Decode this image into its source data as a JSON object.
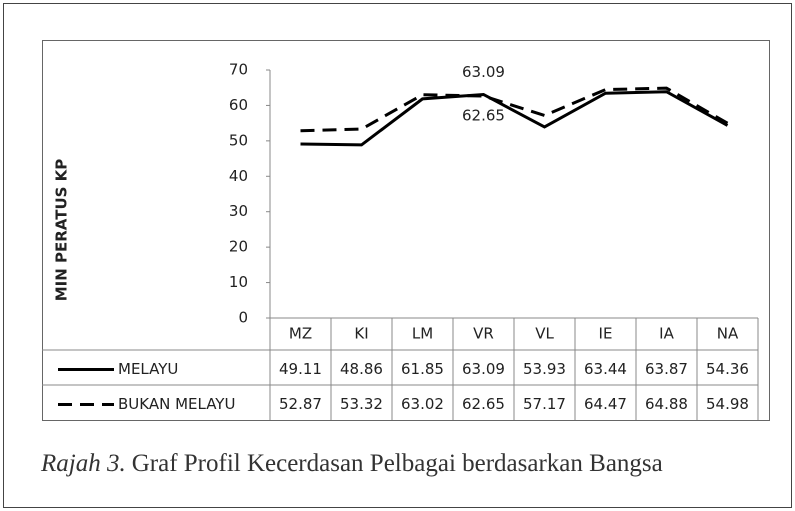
{
  "chart_data": {
    "type": "line",
    "y_axis_label": "MIN PERATUS KP",
    "categories": [
      "MZ",
      "KI",
      "LM",
      "VR",
      "VL",
      "IE",
      "IA",
      "NA"
    ],
    "series": [
      {
        "name": "MELAYU",
        "color": "#000000",
        "line_style": "solid",
        "values": [
          49.11,
          48.86,
          61.85,
          63.09,
          53.93,
          63.44,
          63.87,
          54.36
        ]
      },
      {
        "name": "BUKAN MELAYU",
        "color": "#000000",
        "line_style": "dashed",
        "values": [
          52.87,
          53.32,
          63.02,
          62.65,
          57.17,
          64.47,
          64.88,
          54.98
        ]
      }
    ],
    "data_labels": [
      {
        "series": 0,
        "index": 3,
        "position": "above"
      },
      {
        "series": 1,
        "index": 3,
        "position": "below"
      }
    ],
    "ylim": [
      0,
      70
    ],
    "yticks": [
      0,
      10,
      20,
      30,
      40,
      50,
      60,
      70
    ],
    "grid": false,
    "caption_label": "Rajah 3.",
    "caption_text": "Graf Profil Kecerdasan Pelbagai berdasarkan Bangsa"
  }
}
